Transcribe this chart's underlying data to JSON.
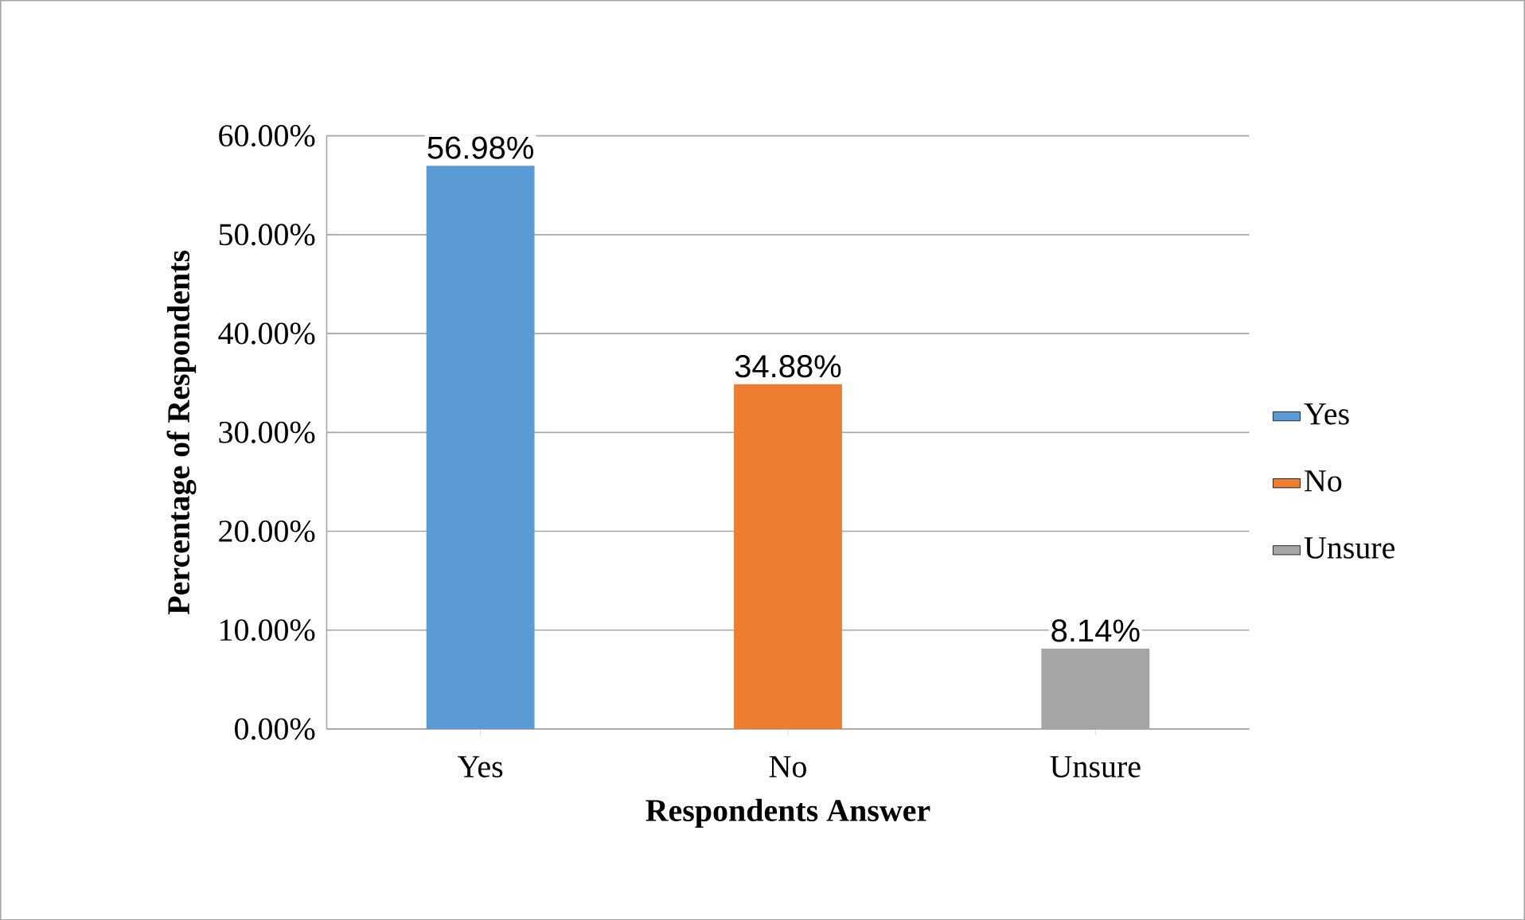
{
  "chart_data": {
    "type": "bar",
    "xlabel": "Respondents Answer",
    "ylabel": "Percentage of Respondents",
    "categories": [
      "Yes",
      "No",
      "Unsure"
    ],
    "series": [
      {
        "name": "Yes",
        "color": "#5b9bd5",
        "values": [
          56.98,
          null,
          null
        ],
        "value_labels": [
          "56.98%",
          null,
          null
        ]
      },
      {
        "name": "No",
        "color": "#ed7d31",
        "values": [
          null,
          34.88,
          null
        ],
        "value_labels": [
          null,
          "34.88%",
          null
        ]
      },
      {
        "name": "Unsure",
        "color": "#a5a5a5",
        "values": [
          null,
          null,
          8.14
        ],
        "value_labels": [
          null,
          null,
          "8.14%"
        ]
      }
    ],
    "ylim": [
      0,
      60
    ],
    "yticks": [
      {
        "value": 0,
        "label": "0.00%"
      },
      {
        "value": 10,
        "label": "10.00%"
      },
      {
        "value": 20,
        "label": "20.00%"
      },
      {
        "value": 30,
        "label": "30.00%"
      },
      {
        "value": 40,
        "label": "40.00%"
      },
      {
        "value": 50,
        "label": "50.00%"
      },
      {
        "value": 60,
        "label": "60.00%"
      }
    ],
    "grid": "y",
    "legend": "right"
  }
}
